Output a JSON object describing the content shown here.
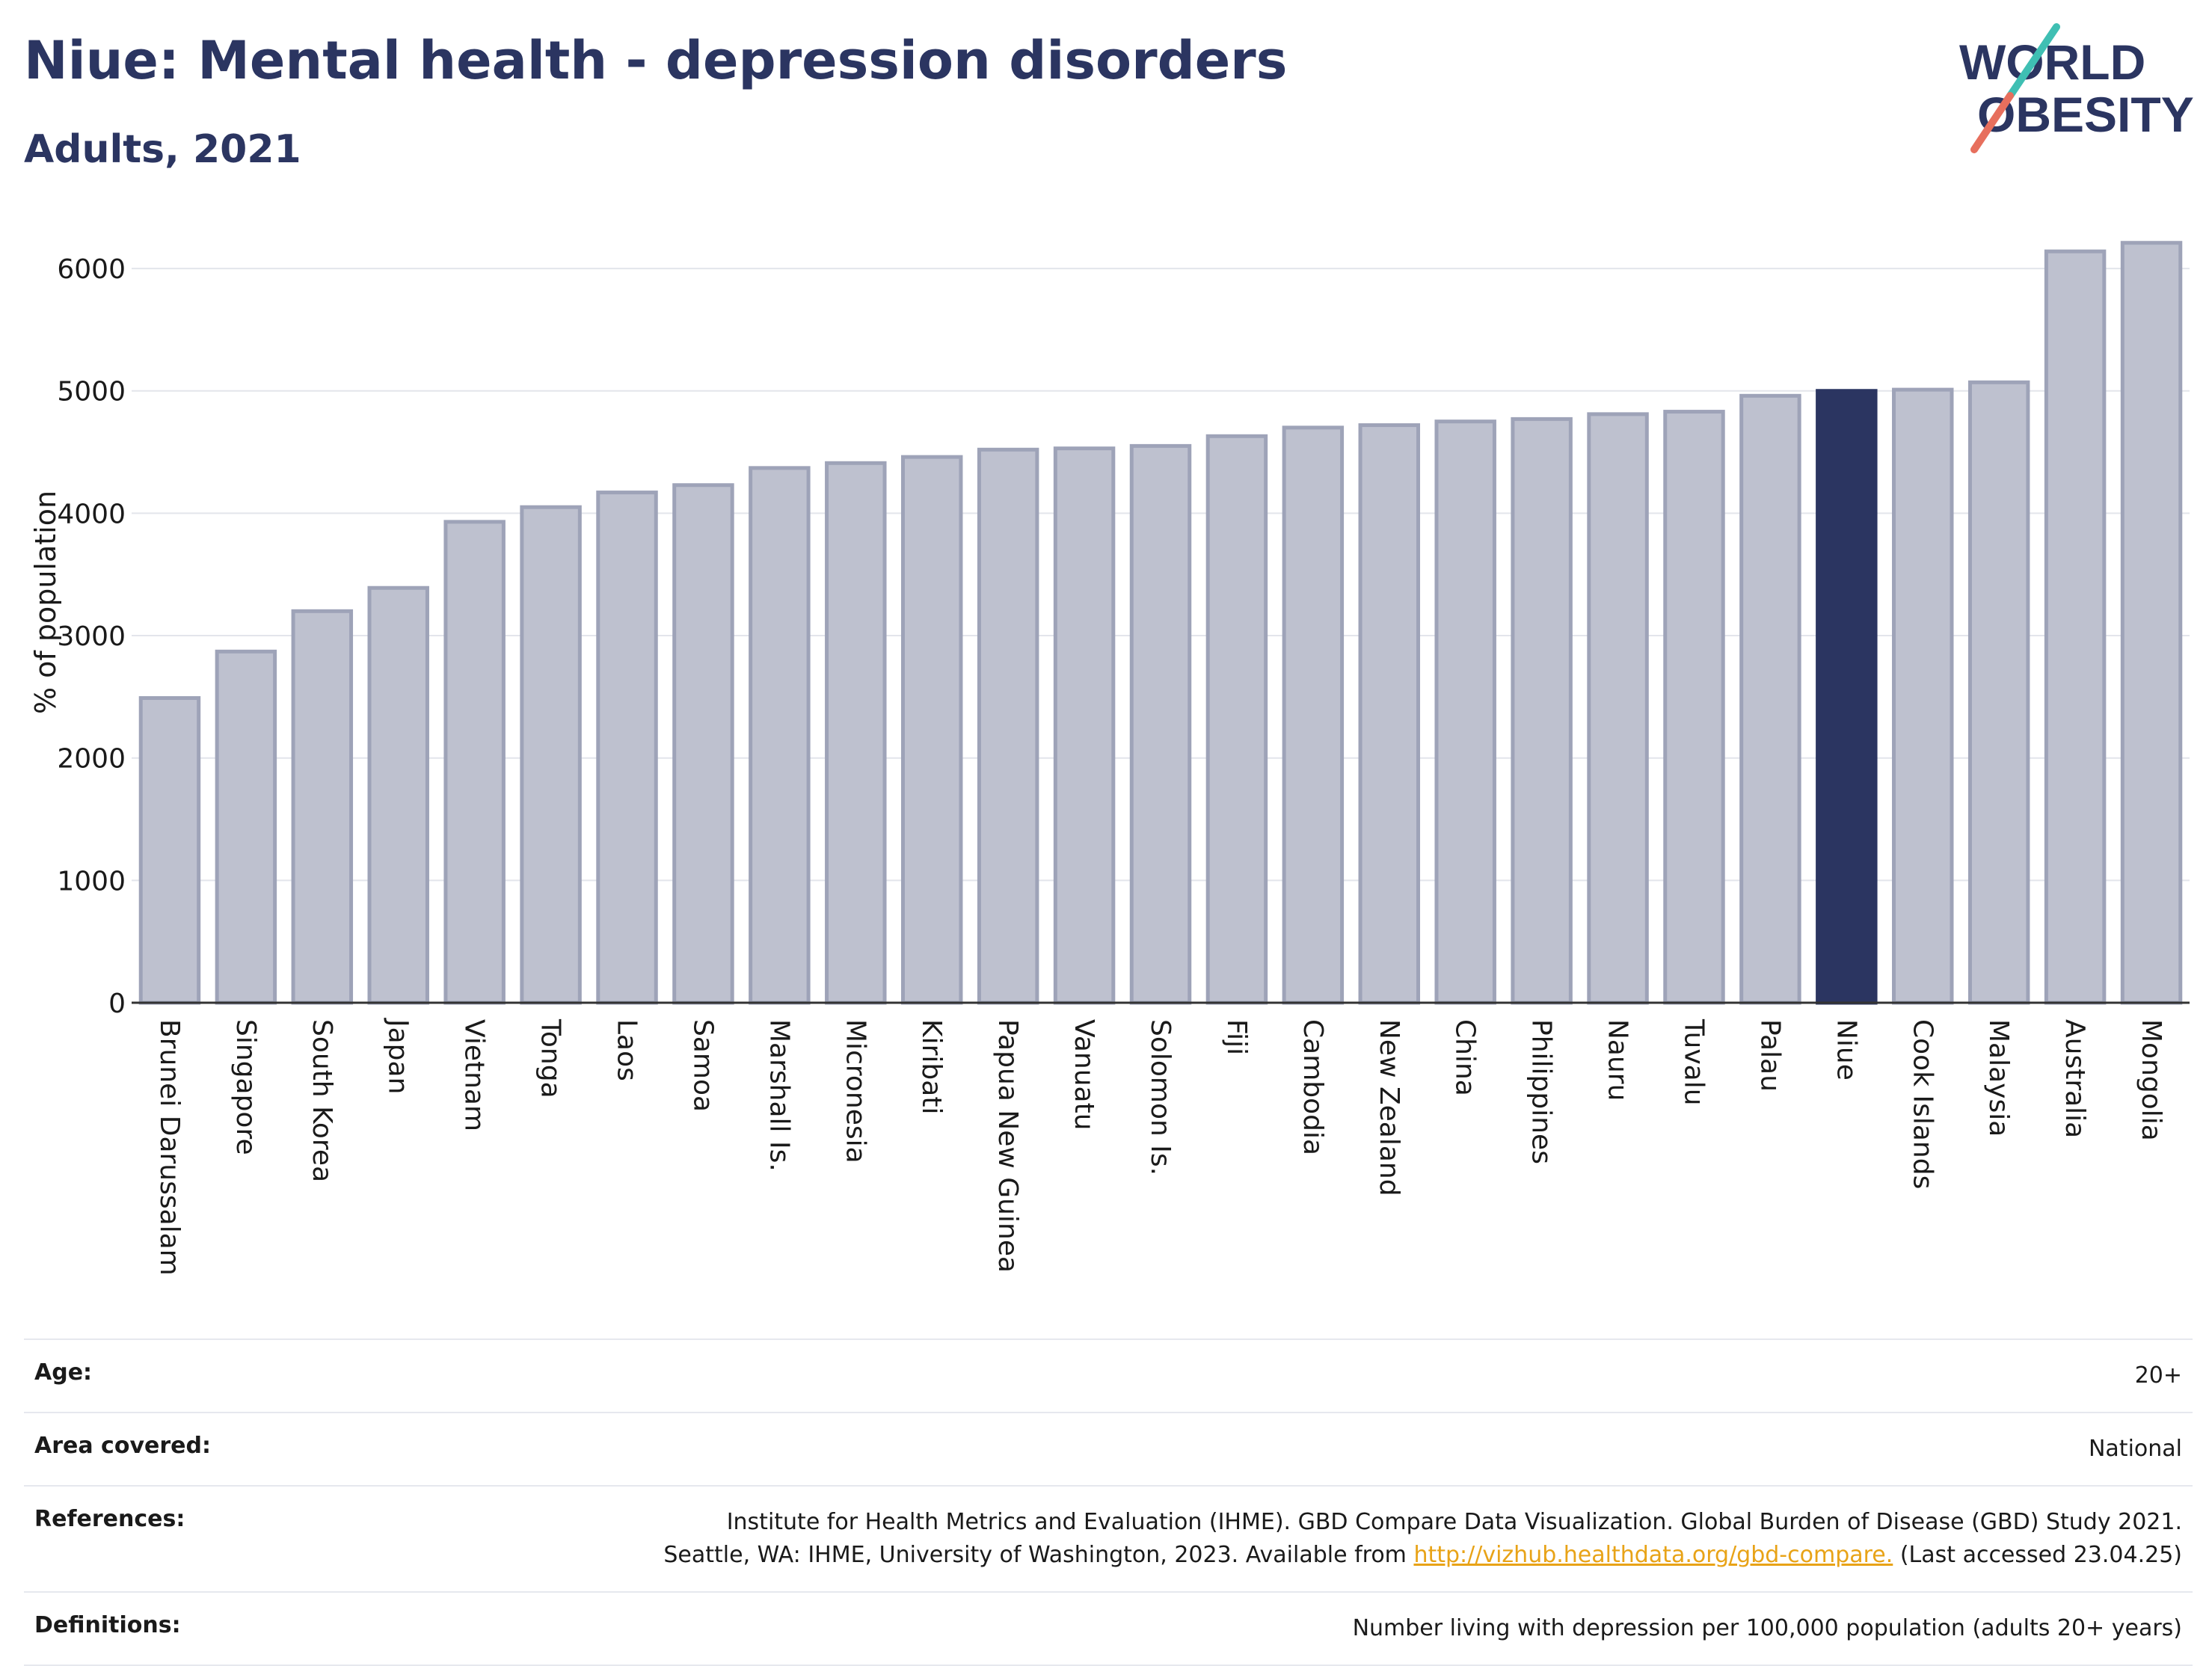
{
  "header": {
    "title": "Niue: Mental health - depression disorders",
    "subtitle": "Adults, 2021"
  },
  "logo": {
    "line1": "WORLD",
    "line2": "OBESITY"
  },
  "chart_data": {
    "type": "bar",
    "title": "Niue: Mental health - depression disorders",
    "subtitle": "Adults, 2021",
    "ylabel": "% of population",
    "xlabel": "",
    "ylim": [
      0,
      6300
    ],
    "yticks": [
      0,
      1000,
      2000,
      3000,
      4000,
      5000,
      6000
    ],
    "grid": true,
    "highlight": "Niue",
    "colors": {
      "bar": "#bec1cf",
      "bar_edge": "#9ea3b8",
      "highlight": "#2b3561",
      "axis": "#333333",
      "grid": "#e3e5eb"
    },
    "categories": [
      "Brunei Darussalam",
      "Singapore",
      "South Korea",
      "Japan",
      "Vietnam",
      "Tonga",
      "Laos",
      "Samoa",
      "Marshall Is.",
      "Micronesia",
      "Kiribati",
      "Papua New Guinea",
      "Vanuatu",
      "Solomon Is.",
      "Fiji",
      "Cambodia",
      "New Zealand",
      "China",
      "Philippines",
      "Nauru",
      "Tuvalu",
      "Palau",
      "Niue",
      "Cook Islands",
      "Malaysia",
      "Australia",
      "Mongolia"
    ],
    "values": [
      2490,
      2870,
      3200,
      3390,
      3930,
      4050,
      4170,
      4230,
      4370,
      4410,
      4460,
      4520,
      4530,
      4550,
      4630,
      4700,
      4720,
      4750,
      4770,
      4810,
      4830,
      4960,
      5000,
      5010,
      5070,
      6140,
      6210
    ]
  },
  "meta": {
    "age": {
      "label": "Age:",
      "value": "20+"
    },
    "area": {
      "label": "Area covered:",
      "value": "National"
    },
    "references": {
      "label": "References:",
      "line1": "Institute for Health Metrics and Evaluation (IHME). GBD Compare Data Visualization. Global Burden of Disease (GBD) Study 2021.",
      "line2_pre": "Seattle, WA: IHME, University of Washington, 2023. Available from ",
      "link": "http://vizhub.healthdata.org/gbd-compare.",
      "line2_post": " (Last accessed 23.04.25)"
    },
    "definitions": {
      "label": "Definitions:",
      "value": "Number living with depression per 100,000 population (adults 20+ years)"
    }
  }
}
